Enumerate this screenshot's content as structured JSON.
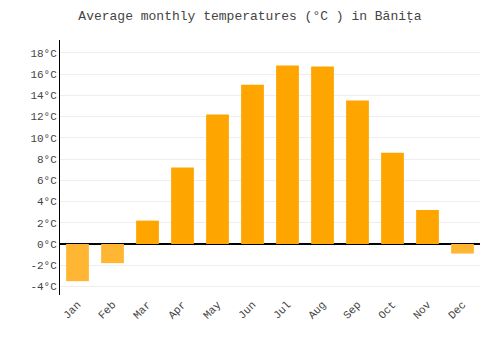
{
  "chart_data": {
    "type": "bar",
    "title": "Average monthly temperatures (°C ) in Bănița",
    "categories": [
      "Jan",
      "Feb",
      "Mar",
      "Apr",
      "May",
      "Jun",
      "Jul",
      "Aug",
      "Sep",
      "Oct",
      "Nov",
      "Dec"
    ],
    "values": [
      -3.5,
      -1.8,
      2.2,
      7.2,
      12.2,
      15.0,
      16.8,
      16.7,
      13.5,
      8.6,
      3.2,
      -0.9
    ],
    "colors": [
      "#FFB733",
      "#FFB733",
      "#FFA500",
      "#FFA500",
      "#FFA500",
      "#FFA500",
      "#FFA500",
      "#FFA500",
      "#FFA500",
      "#FFA500",
      "#FFA500",
      "#FFB733"
    ],
    "ylim": [
      -4.8,
      19.2
    ],
    "yticks": [
      {
        "value": -4,
        "label": "-4°C"
      },
      {
        "value": -2,
        "label": "-2°C"
      },
      {
        "value": 0,
        "label": "0°C"
      },
      {
        "value": 2,
        "label": "2°C"
      },
      {
        "value": 4,
        "label": "4°C"
      },
      {
        "value": 6,
        "label": "6°C"
      },
      {
        "value": 8,
        "label": "8°C"
      },
      {
        "value": 10,
        "label": "10°C"
      },
      {
        "value": 12,
        "label": "12°C"
      },
      {
        "value": 14,
        "label": "14°C"
      },
      {
        "value": 16,
        "label": "16°C"
      },
      {
        "value": 18,
        "label": "18°C"
      }
    ],
    "grid": true
  }
}
